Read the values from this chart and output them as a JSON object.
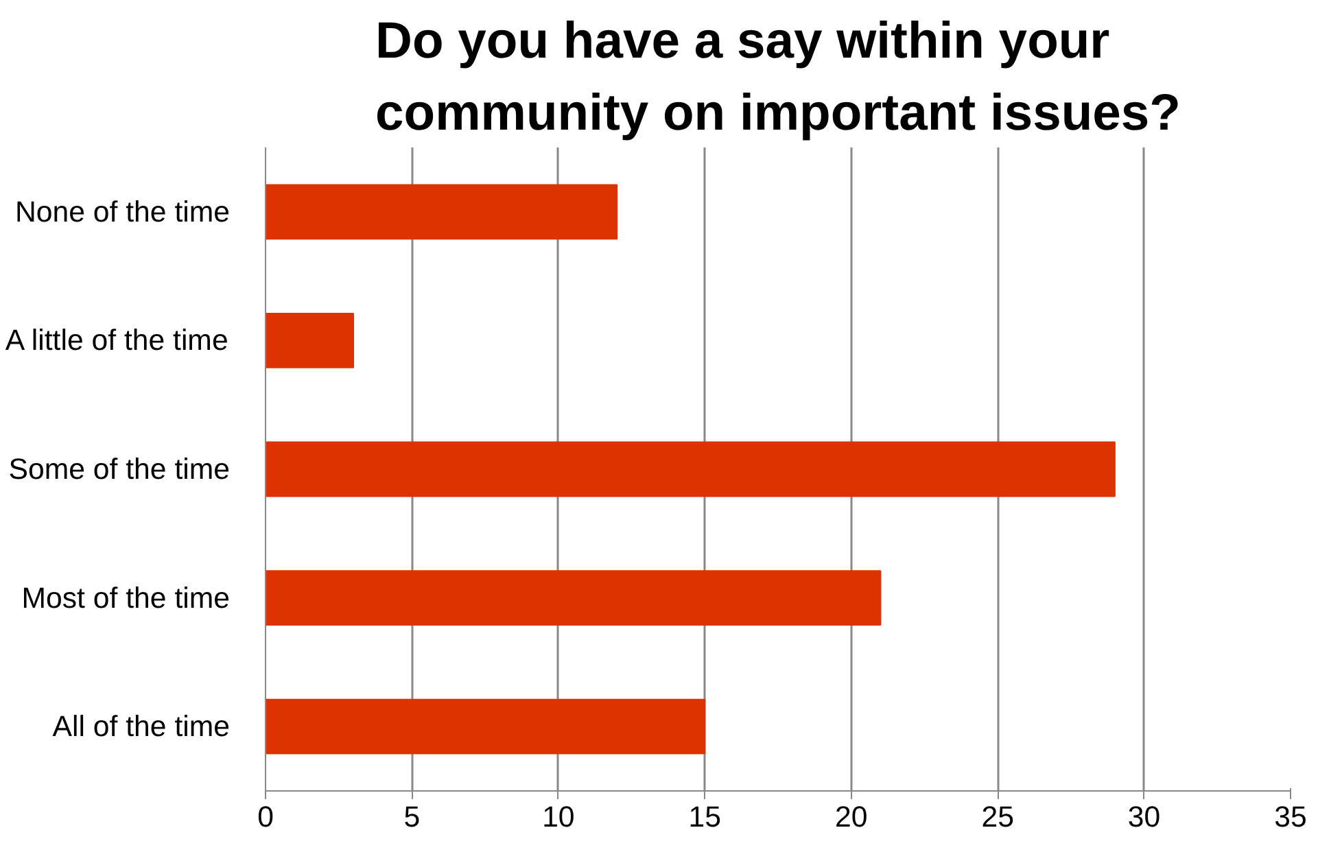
{
  "chart_data": {
    "type": "bar",
    "orientation": "horizontal",
    "title": "Do you have a say within your community on important issues?",
    "categories": [
      "None of the time",
      "A little of the time",
      "Some of the time",
      "Most of the time",
      "All of the time"
    ],
    "values": [
      12,
      3,
      29,
      21,
      15
    ],
    "color": "#dd3300",
    "xlim": [
      0,
      35
    ],
    "xticks": [
      0,
      5,
      10,
      15,
      20,
      25,
      30,
      35
    ],
    "grid": "x"
  }
}
